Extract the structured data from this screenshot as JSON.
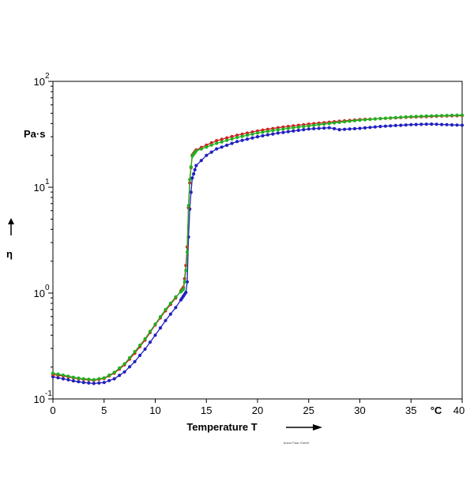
{
  "chart_data": {
    "type": "line",
    "xlabel": "Temperature T",
    "x_unit": "°C",
    "ylabel": "η",
    "y_unit": "Pa·s",
    "xlim": [
      0,
      40
    ],
    "ylim": [
      0.1,
      100
    ],
    "y_scale": "log",
    "grid": false,
    "legend": "none",
    "x_ticks": [
      "0",
      "5",
      "10",
      "15",
      "20",
      "25",
      "30",
      "35",
      "40"
    ],
    "y_ticks": [
      {
        "base": "10",
        "exp": "-1"
      },
      {
        "base": "10",
        "exp": "0"
      },
      {
        "base": "10",
        "exp": "1"
      },
      {
        "base": "10",
        "exp": "2"
      }
    ],
    "credit": "Anton Paar GmbH",
    "series": [
      {
        "color": "#d02020",
        "x": [
          0,
          1,
          2,
          3,
          4,
          5,
          6,
          7,
          8,
          9,
          10,
          11,
          12,
          12.8,
          13.1,
          13.3,
          13.6,
          14,
          15,
          16,
          18,
          20,
          22,
          25,
          28,
          30,
          32,
          35,
          38,
          40
        ],
        "y": [
          0.17,
          0.165,
          0.158,
          0.153,
          0.15,
          0.156,
          0.175,
          0.21,
          0.27,
          0.36,
          0.5,
          0.68,
          0.9,
          1.15,
          2.3,
          9,
          20,
          22.5,
          25,
          27.5,
          31,
          34,
          36.5,
          39.5,
          42,
          43.5,
          44.5,
          46,
          47,
          47.5
        ]
      },
      {
        "color": "#20b020",
        "x": [
          0,
          1,
          2,
          3,
          4,
          5,
          6,
          7,
          8,
          9,
          10,
          11,
          12,
          12.8,
          13.1,
          13.3,
          13.6,
          14,
          15,
          16,
          18,
          20,
          22,
          25,
          28,
          30,
          32,
          35,
          38,
          40
        ],
        "y": [
          0.175,
          0.168,
          0.16,
          0.155,
          0.152,
          0.158,
          0.178,
          0.215,
          0.28,
          0.37,
          0.51,
          0.7,
          0.92,
          1.1,
          2.0,
          10,
          19.5,
          22,
          24,
          26,
          29.5,
          32.5,
          35,
          38,
          41,
          43,
          44.5,
          46.5,
          47.5,
          48
        ]
      },
      {
        "color": "#2020c0",
        "x": [
          0,
          1,
          2,
          3,
          4,
          5,
          6,
          7,
          8,
          9,
          10,
          11,
          12,
          12.8,
          13.1,
          13.3,
          13.6,
          14,
          15,
          16,
          18,
          20,
          22,
          25,
          27,
          28,
          30,
          32,
          35,
          37,
          40
        ],
        "y": [
          0.162,
          0.155,
          0.148,
          0.143,
          0.14,
          0.143,
          0.155,
          0.18,
          0.225,
          0.295,
          0.4,
          0.55,
          0.73,
          0.95,
          1.05,
          5,
          12,
          16,
          20,
          23,
          27,
          30,
          32.5,
          35.5,
          36.5,
          35,
          36,
          37.5,
          39,
          39.5,
          38.5
        ]
      }
    ]
  }
}
